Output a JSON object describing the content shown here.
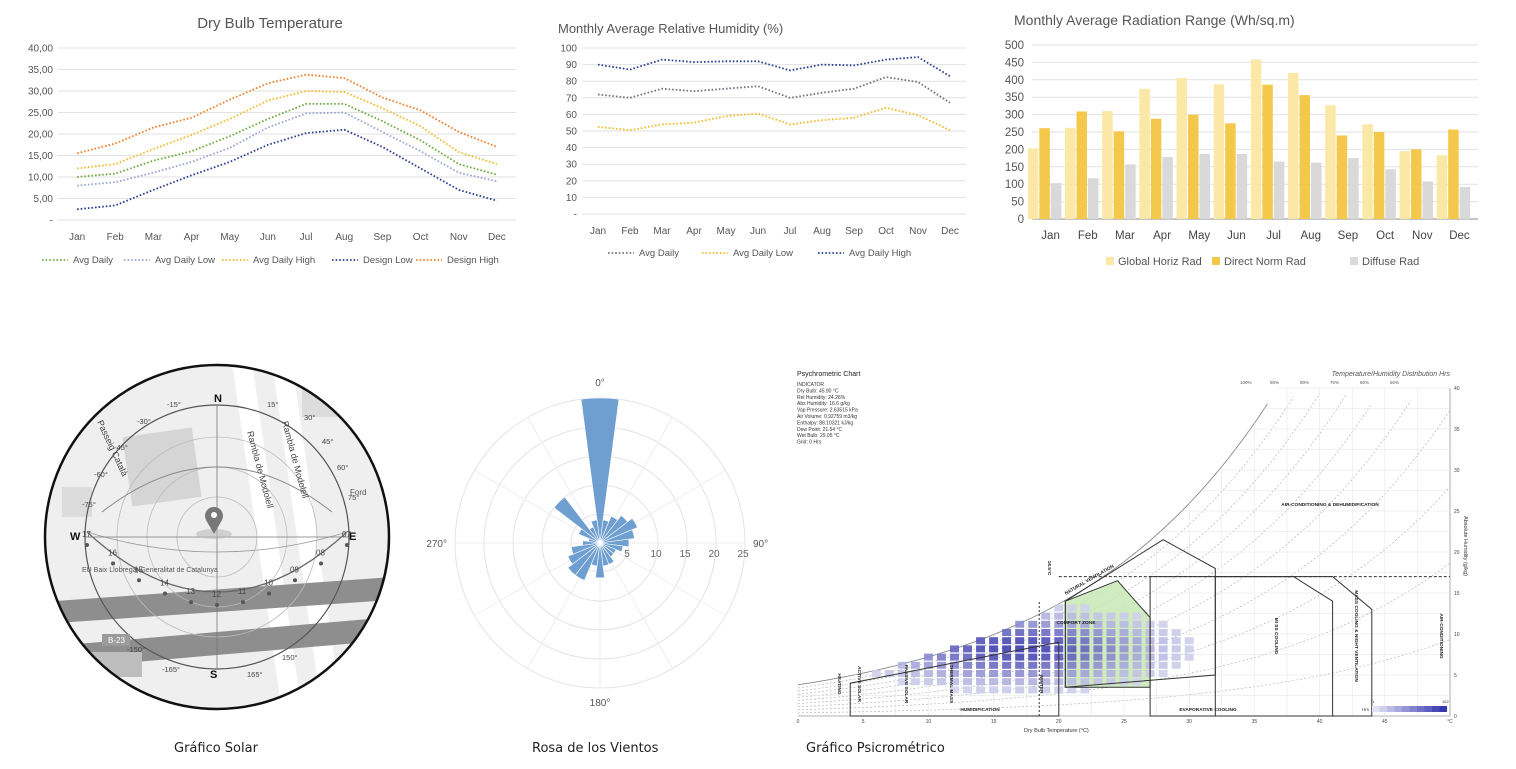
{
  "chart_data": [
    {
      "type": "line",
      "title": "Dry Bulb Temperature",
      "categories": [
        "Jan",
        "Feb",
        "Mar",
        "Apr",
        "May",
        "Jun",
        "Jul",
        "Aug",
        "Sep",
        "Oct",
        "Nov",
        "Dec"
      ],
      "ylim": [
        0,
        40
      ],
      "yticks": [
        "-",
        "5,00",
        "10,00",
        "15,00",
        "20,00",
        "25,00",
        "30,00",
        "35,00",
        "40,00"
      ],
      "legend_position": "bottom",
      "grid": true,
      "series": [
        {
          "name": "Avg Daily",
          "color": "#6aaa3c",
          "values": [
            10,
            10.8,
            13.8,
            16,
            19.5,
            23.5,
            27,
            27,
            23,
            18.5,
            13,
            10.5
          ]
        },
        {
          "name": "Avg Daily Low",
          "color": "#9aa3d6",
          "values": [
            8,
            8.8,
            11,
            13.5,
            16.8,
            21.5,
            24.8,
            25,
            20.5,
            16,
            11,
            9
          ]
        },
        {
          "name": "Avg Daily High",
          "color": "#f2b928",
          "values": [
            12,
            13,
            16.5,
            19.8,
            23.5,
            27.8,
            30,
            29.8,
            26,
            21.8,
            15.8,
            13
          ]
        },
        {
          "name": "Design Low",
          "color": "#2a3f8f",
          "values": [
            2.5,
            3.4,
            7,
            10.4,
            13.5,
            17.5,
            20.2,
            21,
            17,
            12,
            7,
            4.5
          ]
        },
        {
          "name": "Design High",
          "color": "#ef7d2a",
          "values": [
            15.5,
            17.8,
            21.5,
            23.8,
            28,
            31.8,
            33.8,
            33,
            28.5,
            25.5,
            20.5,
            17
          ]
        }
      ]
    },
    {
      "type": "line",
      "title": "Monthly Average Relative Humidity (%)",
      "categories": [
        "Jan",
        "Feb",
        "Mar",
        "Apr",
        "May",
        "Jun",
        "Jul",
        "Aug",
        "Sep",
        "Oct",
        "Nov",
        "Dec"
      ],
      "ylim": [
        0,
        100
      ],
      "yticks": [
        "-",
        "10",
        "20",
        "30",
        "40",
        "50",
        "60",
        "70",
        "80",
        "90",
        "100"
      ],
      "legend_position": "bottom",
      "grid": true,
      "series": [
        {
          "name": "Avg Daily",
          "color": "#707480",
          "values": [
            72,
            70,
            75.5,
            74,
            75.5,
            77,
            70,
            73,
            75.5,
            82.5,
            79.5,
            67
          ]
        },
        {
          "name": "Avg Daily Low",
          "color": "#f2b928",
          "values": [
            52.5,
            50.5,
            54,
            55,
            59,
            60.5,
            54,
            56.5,
            58,
            64,
            59.5,
            50.5
          ]
        },
        {
          "name": "Avg Daily High",
          "color": "#2a3f8f",
          "values": [
            90,
            87,
            93,
            91.5,
            92,
            92,
            86.5,
            90,
            89.5,
            93,
            94.5,
            83
          ]
        }
      ]
    },
    {
      "type": "bar",
      "title": "Monthly Average Radiation Range (Wh/sq.m)",
      "categories": [
        "Jan",
        "Feb",
        "Mar",
        "Apr",
        "May",
        "Jun",
        "Jul",
        "Aug",
        "Sep",
        "Oct",
        "Nov",
        "Dec"
      ],
      "ylim": [
        0,
        500
      ],
      "yticks": [
        "0",
        "50",
        "100",
        "150",
        "200",
        "250",
        "300",
        "350",
        "400",
        "450",
        "500"
      ],
      "legend_position": "bottom",
      "grid": true,
      "series": [
        {
          "name": "Global Horiz Rad",
          "color": "#fbe7a6",
          "values": [
            203,
            262,
            310,
            374,
            405,
            387,
            458,
            420,
            327,
            272,
            195,
            183
          ]
        },
        {
          "name": "Direct Norm Rad",
          "color": "#f4c84b",
          "values": [
            261,
            309,
            252,
            288,
            300,
            275,
            386,
            356,
            240,
            250,
            200,
            257
          ]
        },
        {
          "name": "Diffuse Rad",
          "color": "#d9d9d9",
          "values": [
            103,
            117,
            157,
            178,
            187,
            187,
            165,
            162,
            175,
            143,
            108,
            92
          ]
        }
      ]
    },
    {
      "type": "pie",
      "subtype": "wind-rose",
      "rlim": [
        0,
        25
      ],
      "rticks": [
        "5",
        "10",
        "15",
        "20",
        "25"
      ],
      "direction_labels": [
        "0°",
        "90°",
        "180°",
        "270°"
      ],
      "color": "#6f9fd1",
      "sectors_deg": [
        0,
        15,
        30,
        45,
        60,
        75,
        90,
        105,
        120,
        135,
        150,
        165,
        180,
        195,
        210,
        225,
        240,
        255,
        270,
        285,
        300,
        315,
        330,
        345
      ],
      "values": [
        25,
        4,
        5,
        6,
        7,
        6,
        5,
        4,
        3,
        3,
        4,
        4,
        6,
        4,
        7,
        7,
        6,
        5,
        3,
        2,
        4,
        10,
        3,
        4
      ]
    }
  ],
  "solar": {
    "caption": "Gráfico Solar",
    "cardinals": {
      "n": "N",
      "s": "S",
      "e": "E",
      "w": "W"
    },
    "hours": [
      "17",
      "16",
      "15",
      "14",
      "13",
      "12",
      "11",
      "10",
      "09",
      "08",
      "07"
    ],
    "angles": [
      "-15°",
      "-30°",
      "-45°",
      "-60°",
      "-75°",
      "15°",
      "30°",
      "45°",
      "60°",
      "75°",
      "-165°",
      "165°",
      "-150°",
      "150°"
    ],
    "streets": [
      "Rambla de Modolell",
      "Rambla de Modolell",
      "Passeig Català"
    ],
    "road_label": "B-23",
    "place_label": "Ford",
    "building_label": "EU Baix Llobregat Generalitat de Catalunya"
  },
  "wind": {
    "caption": "Rosa de los Vientos"
  },
  "psychro": {
    "caption": "Gráfico Psicrométrico",
    "heading": "Psychrometric Chart",
    "right_heading": "Temperature/Humidity Distribution Hrs",
    "indicator_lines": [
      "INDICATOR",
      "Dry Bulb: 45.90 °C",
      "Rel Humidity: 24.26%",
      "Abs Humidity: 16.6 g/kg",
      "Vap Pressure: 2.63515 kPa",
      "Air Volume: 0.92759 m3/kg",
      "Enthalpy: 88.10321 kJ/kg",
      "Dew Point: 21.54 °C",
      "Wet Bulb: 29.05 °C",
      "Grid: 0 Hrs"
    ],
    "xlabel": "Dry Bulb Temperature (°C)",
    "ylabel": "Absolute Humidity (g/kg)",
    "xticks": [
      "0",
      "5",
      "10",
      "15",
      "20",
      "25",
      "30",
      "35",
      "40",
      "45",
      "°C"
    ],
    "yticks": [
      "0",
      "5",
      "10",
      "15",
      "20",
      "25",
      "30",
      "35",
      "40"
    ],
    "rh_labels": [
      "100%",
      "90%",
      "80%",
      "70%",
      "60%",
      "50%"
    ],
    "zones": [
      "AIR-CONDITIONING & DEHUMIDIFICATION",
      "NATURAL VENTILATION",
      "COMFORT ZONE",
      "HUMIDIFICATION",
      "EVAPORATIVE COOLING",
      "MI SS COOLING",
      "MASS COOLING & NIGHT VENTILATION",
      "AIR-CONDITIONING",
      "HEATING",
      "ACTIVE SOLAR",
      "PASSIVE SOLAR",
      "THERMAL MASS",
      "WINTER",
      "18.5°C"
    ],
    "hrs_legend": {
      "label": "Hrs",
      "min": "1",
      "max": "162"
    }
  }
}
